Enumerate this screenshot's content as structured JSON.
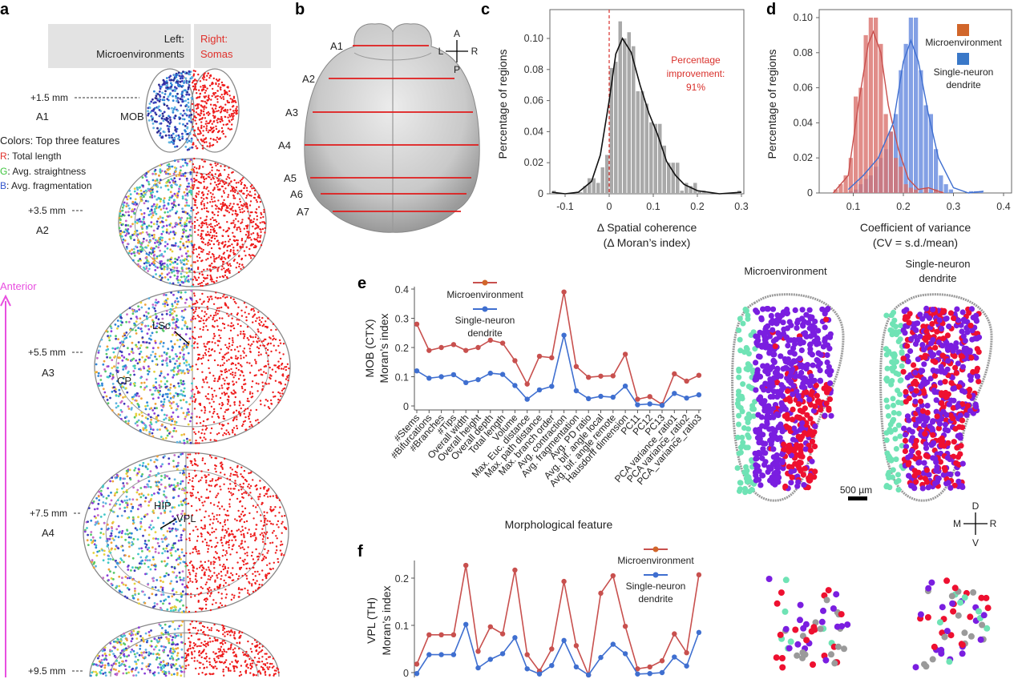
{
  "panel_labels": {
    "a": "a",
    "b": "b",
    "c": "c",
    "d": "d",
    "e": "e",
    "f": "f"
  },
  "colors": {
    "red": "#c8504e",
    "red_fill": "#d9706c",
    "blue": "#3f6fd0",
    "blue_fill": "#6d8fe0",
    "orange": "#d1662a",
    "gray_bar": "#a9a9a9",
    "annotation_red": "#d9302b",
    "anterior": "#e84fe0",
    "soma_red": "#ee1c1c"
  },
  "panel_a": {
    "header_left_1": "Left:",
    "header_left_2": "Microenvironments",
    "header_right_1": "Right:",
    "header_right_2": "Somas",
    "colors_title": "Colors: Top three features",
    "r_key": "R",
    "r_label": ": Total length",
    "g_key": "G",
    "g_label": ": Avg. straightness",
    "b_key": "B",
    "b_label": ": Avg. fragmentation",
    "anterior": "Anterior",
    "sections": [
      {
        "depth": "+1.5 mm",
        "name": "A1"
      },
      {
        "depth": "+3.5 mm",
        "name": "A2"
      },
      {
        "depth": "+5.5 mm",
        "name": "A3"
      },
      {
        "depth": "+7.5 mm",
        "name": "A4"
      },
      {
        "depth": "+9.5 mm",
        "name": ""
      }
    ],
    "regions": {
      "mob": "MOB",
      "lsc": "LSc",
      "cp": "CP",
      "hip": "HIP",
      "vpl": "VPL"
    }
  },
  "panel_b": {
    "sections": [
      "A1",
      "A2",
      "A3",
      "A4",
      "A5",
      "A6",
      "A7"
    ],
    "compass": {
      "up": "A",
      "down": "P",
      "left": "L",
      "right": "R"
    }
  },
  "panel_e_maps": {
    "title_left": "Microenvironment",
    "title_right_1": "Single-neuron",
    "title_right_2": "dendrite",
    "scale_bar": "500 µm",
    "compass": {
      "up": "D",
      "down": "V",
      "left": "M",
      "right": "R"
    }
  },
  "chart_data": [
    {
      "id": "c",
      "type": "bar",
      "xlabel_1": "Δ Spatial coherence",
      "xlabel_2": "(Δ Moran’s index)",
      "ylabel": "Percentage of regions",
      "xlim": [
        -0.13,
        0.3
      ],
      "ylim": [
        0,
        0.118
      ],
      "xticks": [
        "-0.1",
        "0",
        "0.1",
        "0.2",
        "0.3"
      ],
      "xtick_values": [
        -0.1,
        0,
        0.1,
        0.2,
        0.3
      ],
      "yticks": [
        "0",
        "0.02",
        "0.04",
        "0.06",
        "0.08",
        "0.10"
      ],
      "ytick_values": [
        0,
        0.02,
        0.04,
        0.06,
        0.08,
        0.1
      ],
      "bin_width": 0.01,
      "bins": [
        [
          -0.125,
          0.002
        ],
        [
          -0.065,
          0.001
        ],
        [
          -0.055,
          0.005
        ],
        [
          -0.045,
          0.01
        ],
        [
          -0.035,
          0.01
        ],
        [
          -0.025,
          0.007
        ],
        [
          -0.015,
          0.017
        ],
        [
          -0.005,
          0.025
        ],
        [
          0.005,
          0.081
        ],
        [
          0.015,
          0.085
        ],
        [
          0.025,
          0.111
        ],
        [
          0.035,
          0.1
        ],
        [
          0.045,
          0.104
        ],
        [
          0.055,
          0.095
        ],
        [
          0.065,
          0.066
        ],
        [
          0.075,
          0.066
        ],
        [
          0.085,
          0.058
        ],
        [
          0.095,
          0.046
        ],
        [
          0.105,
          0.045
        ],
        [
          0.115,
          0.045
        ],
        [
          0.125,
          0.031
        ],
        [
          0.135,
          0.02
        ],
        [
          0.145,
          0.02
        ],
        [
          0.155,
          0.02
        ],
        [
          0.165,
          0.002
        ],
        [
          0.175,
          0.007
        ],
        [
          0.185,
          0.005
        ],
        [
          0.195,
          0.007
        ],
        [
          0.205,
          0.002
        ],
        [
          0.215,
          0.002
        ],
        [
          0.295,
          0.002
        ]
      ],
      "density_curve": [
        [
          -0.13,
          0.001
        ],
        [
          -0.1,
          0.0
        ],
        [
          -0.07,
          0.001
        ],
        [
          -0.04,
          0.008
        ],
        [
          -0.02,
          0.025
        ],
        [
          0.0,
          0.06
        ],
        [
          0.015,
          0.09
        ],
        [
          0.03,
          0.1
        ],
        [
          0.05,
          0.091
        ],
        [
          0.07,
          0.07
        ],
        [
          0.09,
          0.052
        ],
        [
          0.11,
          0.038
        ],
        [
          0.13,
          0.021
        ],
        [
          0.15,
          0.012
        ],
        [
          0.17,
          0.006
        ],
        [
          0.2,
          0.002
        ],
        [
          0.25,
          0.0
        ],
        [
          0.3,
          0.001
        ]
      ],
      "reference_line_x": 0,
      "annotation_1": "Percentage",
      "annotation_2": "improvement:",
      "annotation_3": "91%"
    },
    {
      "id": "d",
      "type": "bar",
      "xlabel_1": "Coefficient of variance",
      "xlabel_2": "(CV = s.d./mean)",
      "ylabel": "Percentage of regions",
      "xlim": [
        0.03,
        0.41
      ],
      "ylim": [
        0,
        0.103
      ],
      "xticks": [
        "0.1",
        "0.2",
        "0.3",
        "0.4"
      ],
      "xtick_values": [
        0.1,
        0.2,
        0.3,
        0.4
      ],
      "yticks": [
        "0",
        "0.02",
        "0.04",
        "0.06",
        "0.08",
        "0.10"
      ],
      "ytick_values": [
        0,
        0.02,
        0.04,
        0.06,
        0.08,
        0.1
      ],
      "legend_position": "top-right",
      "bin_width": 0.01,
      "series": [
        {
          "name": "Microenvironment",
          "bins": [
            [
              0.065,
              0.002
            ],
            [
              0.075,
              0.005
            ],
            [
              0.085,
              0.01
            ],
            [
              0.095,
              0.02
            ],
            [
              0.105,
              0.055
            ],
            [
              0.115,
              0.06
            ],
            [
              0.125,
              0.09
            ],
            [
              0.135,
              0.1
            ],
            [
              0.145,
              0.1
            ],
            [
              0.155,
              0.085
            ],
            [
              0.165,
              0.045
            ],
            [
              0.175,
              0.035
            ],
            [
              0.185,
              0.02
            ],
            [
              0.195,
              0.015
            ],
            [
              0.205,
              0.005
            ],
            [
              0.215,
              0.003
            ],
            [
              0.225,
              0.002
            ],
            [
              0.245,
              0.003
            ],
            [
              0.265,
              0.002
            ],
            [
              0.275,
              0.001
            ]
          ],
          "density_curve": [
            [
              0.06,
              0.0
            ],
            [
              0.09,
              0.01
            ],
            [
              0.11,
              0.05
            ],
            [
              0.13,
              0.085
            ],
            [
              0.14,
              0.092
            ],
            [
              0.155,
              0.08
            ],
            [
              0.17,
              0.05
            ],
            [
              0.19,
              0.025
            ],
            [
              0.21,
              0.008
            ],
            [
              0.23,
              0.002
            ],
            [
              0.25,
              0.003
            ],
            [
              0.28,
              0.0
            ]
          ]
        },
        {
          "name": "Single-neuron dendrite",
          "bins": [
            [
              0.095,
              0.001
            ],
            [
              0.105,
              0.002
            ],
            [
              0.115,
              0.005
            ],
            [
              0.125,
              0.008
            ],
            [
              0.135,
              0.01
            ],
            [
              0.145,
              0.015
            ],
            [
              0.155,
              0.02
            ],
            [
              0.165,
              0.025
            ],
            [
              0.175,
              0.035
            ],
            [
              0.185,
              0.045
            ],
            [
              0.195,
              0.07
            ],
            [
              0.205,
              0.085
            ],
            [
              0.215,
              0.1
            ],
            [
              0.225,
              0.1
            ],
            [
              0.235,
              0.07
            ],
            [
              0.245,
              0.05
            ],
            [
              0.255,
              0.045
            ],
            [
              0.265,
              0.025
            ],
            [
              0.275,
              0.01
            ],
            [
              0.285,
              0.005
            ],
            [
              0.295,
              0.002
            ],
            [
              0.335,
              0.001
            ],
            [
              0.345,
              0.001
            ],
            [
              0.355,
              0.001
            ]
          ],
          "density_curve": [
            [
              0.09,
              0.002
            ],
            [
              0.12,
              0.01
            ],
            [
              0.15,
              0.02
            ],
            [
              0.18,
              0.04
            ],
            [
              0.2,
              0.075
            ],
            [
              0.215,
              0.087
            ],
            [
              0.23,
              0.075
            ],
            [
              0.25,
              0.045
            ],
            [
              0.27,
              0.02
            ],
            [
              0.3,
              0.003
            ],
            [
              0.33,
              0.0
            ],
            [
              0.36,
              0.001
            ]
          ]
        }
      ],
      "legend_1": "Microenvironment",
      "legend_2a": "Single-neuron",
      "legend_2b": "dendrite"
    },
    {
      "id": "e",
      "type": "line",
      "ylabel_1": "MOB (CTX)",
      "ylabel_2": "Moran’s index",
      "xlabel": "Morphological feature",
      "ylim": [
        0,
        0.4
      ],
      "yticks": [
        "0",
        "0.1",
        "0.2",
        "0.3",
        "0.4"
      ],
      "ytick_values": [
        0,
        0.1,
        0.2,
        0.3,
        0.4
      ],
      "categories": [
        "#Stems",
        "#Bifurcations",
        "#Branches",
        "#Tips",
        "Overall width",
        "Overall height",
        "Overall depth",
        "Total length",
        "Volume",
        "Max. Euc. distance",
        "Max. path distance",
        "Max. branch order",
        "Avg. contraction",
        "Avg. fragmentation",
        "Avg. PD ratio",
        "Avg. bif. angle local",
        "Avg. bif. angle remote",
        "Hausdorff dimension",
        "PC11",
        "PC12",
        "PC13",
        "PCA variance_ratio1",
        "PCA variance_ratio2",
        "PCA_variance_ratio3"
      ],
      "series": [
        {
          "name": "Microenvironment",
          "values": [
            0.28,
            0.19,
            0.2,
            0.21,
            0.19,
            0.2,
            0.225,
            0.215,
            0.155,
            0.075,
            0.17,
            0.165,
            0.39,
            0.135,
            0.098,
            0.102,
            0.103,
            0.177,
            0.023,
            0.032,
            0.005,
            0.11,
            0.085,
            0.105
          ]
        },
        {
          "name": "Single-neuron dendrite",
          "values": [
            0.12,
            0.095,
            0.1,
            0.107,
            0.08,
            0.09,
            0.112,
            0.108,
            0.07,
            0.023,
            0.055,
            0.067,
            0.242,
            0.052,
            0.025,
            0.033,
            0.03,
            0.068,
            0.004,
            0.007,
            0.002,
            0.043,
            0.027,
            0.038
          ]
        }
      ],
      "legend_1": "Microenvironment",
      "legend_2a": "Single-neuron",
      "legend_2b": "dendrite"
    },
    {
      "id": "f",
      "type": "line",
      "ylabel_1": "VPL (TH)",
      "ylabel_2": "Moran’s index",
      "yticks": [
        "0",
        "0.1",
        "0.2"
      ],
      "ytick_values": [
        0,
        0.1,
        0.2
      ],
      "series": [
        {
          "name": "Microenvironment",
          "values": [
            0.018,
            0.08,
            0.08,
            0.08,
            0.227,
            0.045,
            0.097,
            0.082,
            0.217,
            0.038,
            0.003,
            0.05,
            0.193,
            0.057,
            -0.005,
            0.168,
            0.205,
            0.098,
            0.008,
            0.012,
            0.025,
            0.082,
            0.042,
            0.207
          ]
        },
        {
          "name": "Single-neuron dendrite",
          "values": [
            -0.002,
            0.038,
            0.038,
            0.038,
            0.102,
            0.01,
            0.028,
            0.04,
            0.074,
            0.008,
            -0.003,
            0.015,
            0.068,
            0.012,
            -0.005,
            0.032,
            0.06,
            0.04,
            -0.003,
            -0.002,
            0.0,
            0.033,
            0.014,
            0.085
          ]
        }
      ],
      "legend_1": "Microenvironment",
      "legend_2a": "Single-neuron",
      "legend_2b": "dendrite"
    }
  ]
}
